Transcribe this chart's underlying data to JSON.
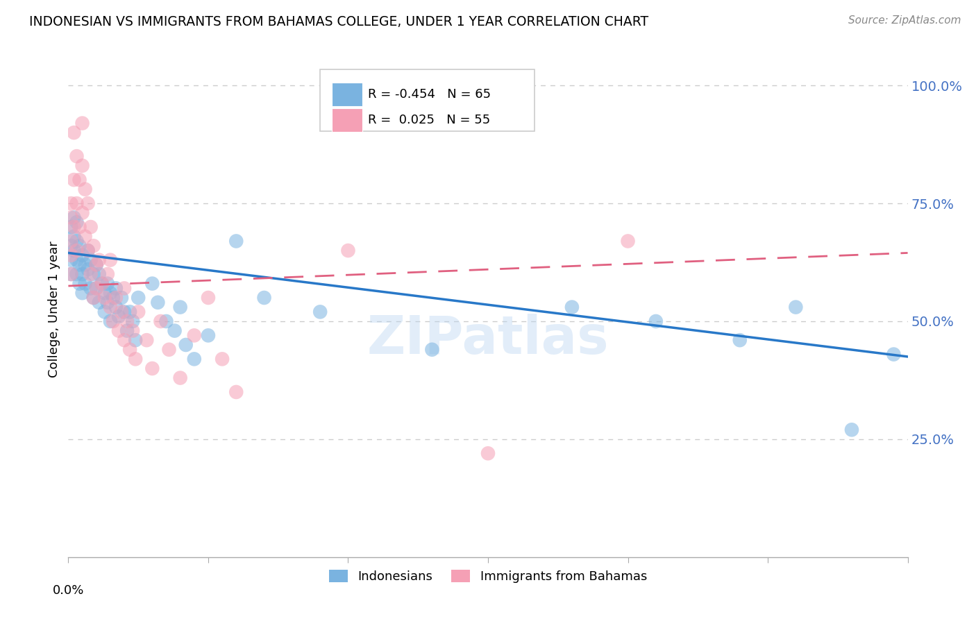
{
  "title": "INDONESIAN VS IMMIGRANTS FROM BAHAMAS COLLEGE, UNDER 1 YEAR CORRELATION CHART",
  "source": "Source: ZipAtlas.com",
  "ylabel": "College, Under 1 year",
  "xmin": 0.0,
  "xmax": 0.3,
  "ymin": 0.0,
  "ymax": 1.05,
  "yticks": [
    0.25,
    0.5,
    0.75,
    1.0
  ],
  "ytick_labels": [
    "25.0%",
    "50.0%",
    "75.0%",
    "100.0%"
  ],
  "grid_color": "#cccccc",
  "background_color": "#ffffff",
  "indonesian_color": "#7ab3e0",
  "bahamas_color": "#f5a0b5",
  "trend_blue": "#2878c8",
  "trend_pink": "#e06080",
  "indonesian_R": -0.454,
  "indonesian_N": 65,
  "bahamas_R": 0.025,
  "bahamas_N": 55,
  "legend_label1": "Indonesians",
  "legend_label2": "Immigrants from Bahamas",
  "indonesian_x": [
    0.001,
    0.001,
    0.001,
    0.001,
    0.002,
    0.002,
    0.002,
    0.003,
    0.003,
    0.003,
    0.003,
    0.004,
    0.004,
    0.004,
    0.005,
    0.005,
    0.005,
    0.006,
    0.006,
    0.007,
    0.007,
    0.008,
    0.008,
    0.009,
    0.009,
    0.01,
    0.01,
    0.011,
    0.011,
    0.012,
    0.013,
    0.013,
    0.014,
    0.014,
    0.015,
    0.015,
    0.016,
    0.017,
    0.017,
    0.018,
    0.019,
    0.02,
    0.021,
    0.022,
    0.023,
    0.024,
    0.025,
    0.03,
    0.032,
    0.035,
    0.038,
    0.04,
    0.042,
    0.045,
    0.05,
    0.06,
    0.07,
    0.09,
    0.13,
    0.18,
    0.21,
    0.24,
    0.26,
    0.28,
    0.295
  ],
  "indonesian_y": [
    0.66,
    0.63,
    0.7,
    0.6,
    0.68,
    0.72,
    0.65,
    0.67,
    0.63,
    0.71,
    0.6,
    0.66,
    0.62,
    0.58,
    0.64,
    0.6,
    0.56,
    0.62,
    0.58,
    0.65,
    0.61,
    0.57,
    0.63,
    0.55,
    0.6,
    0.62,
    0.57,
    0.6,
    0.54,
    0.58,
    0.56,
    0.52,
    0.58,
    0.54,
    0.56,
    0.5,
    0.55,
    0.53,
    0.57,
    0.51,
    0.55,
    0.52,
    0.48,
    0.52,
    0.5,
    0.46,
    0.55,
    0.58,
    0.54,
    0.5,
    0.48,
    0.53,
    0.45,
    0.42,
    0.47,
    0.67,
    0.55,
    0.52,
    0.44,
    0.53,
    0.5,
    0.46,
    0.53,
    0.27,
    0.43
  ],
  "bahamas_x": [
    0.001,
    0.001,
    0.001,
    0.001,
    0.001,
    0.002,
    0.002,
    0.002,
    0.003,
    0.003,
    0.003,
    0.004,
    0.004,
    0.005,
    0.005,
    0.005,
    0.006,
    0.006,
    0.007,
    0.007,
    0.008,
    0.008,
    0.009,
    0.009,
    0.01,
    0.01,
    0.011,
    0.012,
    0.013,
    0.014,
    0.015,
    0.015,
    0.016,
    0.017,
    0.018,
    0.019,
    0.02,
    0.02,
    0.021,
    0.022,
    0.023,
    0.024,
    0.025,
    0.028,
    0.03,
    0.033,
    0.036,
    0.04,
    0.045,
    0.05,
    0.055,
    0.06,
    0.1,
    0.15,
    0.2
  ],
  "bahamas_y": [
    0.67,
    0.72,
    0.75,
    0.64,
    0.6,
    0.9,
    0.8,
    0.7,
    0.85,
    0.75,
    0.65,
    0.8,
    0.7,
    0.92,
    0.83,
    0.73,
    0.78,
    0.68,
    0.75,
    0.65,
    0.7,
    0.6,
    0.66,
    0.55,
    0.62,
    0.57,
    0.63,
    0.58,
    0.55,
    0.6,
    0.53,
    0.63,
    0.5,
    0.55,
    0.48,
    0.52,
    0.57,
    0.46,
    0.5,
    0.44,
    0.48,
    0.42,
    0.52,
    0.46,
    0.4,
    0.5,
    0.44,
    0.38,
    0.47,
    0.55,
    0.42,
    0.35,
    0.65,
    0.22,
    0.67
  ],
  "indo_trend_x": [
    0.0,
    0.3
  ],
  "indo_trend_y": [
    0.645,
    0.425
  ],
  "bah_trend_x": [
    0.0,
    0.3
  ],
  "bah_trend_y": [
    0.575,
    0.645
  ]
}
